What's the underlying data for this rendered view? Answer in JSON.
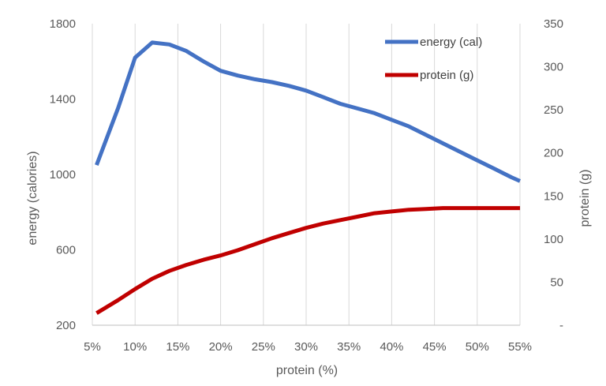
{
  "chart_data": {
    "type": "line",
    "xlabel": "protein (%)",
    "ylabel": "energy (calories)",
    "y2label": "protein (g)",
    "x_ticks": [
      "5%",
      "10%",
      "15%",
      "20%",
      "25%",
      "30%",
      "35%",
      "40%",
      "45%",
      "50%",
      "55%"
    ],
    "x_range": [
      5,
      55
    ],
    "y_ticks": [
      "200",
      "600",
      "1000",
      "1400",
      "1800"
    ],
    "y_range": [
      200,
      1800
    ],
    "y2_ticks": [
      "-",
      "50",
      "100",
      "150",
      "200",
      "250",
      "300",
      "350"
    ],
    "y2_range": [
      0,
      350
    ],
    "grid": "vertical",
    "legend_position": "top-right",
    "series": [
      {
        "name": "energy (cal)",
        "axis": "left",
        "color": "#4472C4",
        "x": [
          5.5,
          8,
          10,
          12,
          14,
          16,
          18,
          20,
          22,
          24,
          26,
          28,
          30,
          32,
          34,
          36,
          38,
          40,
          42,
          44,
          46,
          48,
          50,
          52,
          54,
          55
        ],
        "y": [
          1050,
          1350,
          1620,
          1700,
          1690,
          1655,
          1600,
          1550,
          1525,
          1505,
          1490,
          1470,
          1445,
          1410,
          1375,
          1350,
          1325,
          1290,
          1255,
          1210,
          1165,
          1120,
          1075,
          1030,
          985,
          965
        ]
      },
      {
        "name": "protein (g)",
        "axis": "right",
        "color": "#C00000",
        "x": [
          5.5,
          8,
          10,
          12,
          14,
          16,
          18,
          20,
          22,
          24,
          26,
          28,
          30,
          32,
          34,
          36,
          38,
          40,
          42,
          44,
          46,
          48,
          50,
          52,
          54,
          55
        ],
        "y": [
          14,
          29,
          42,
          54,
          63,
          70,
          76,
          81,
          87,
          94,
          101,
          107,
          113,
          118,
          122,
          126,
          130,
          132,
          134,
          135,
          136,
          136,
          136,
          136,
          136,
          136
        ]
      }
    ]
  }
}
